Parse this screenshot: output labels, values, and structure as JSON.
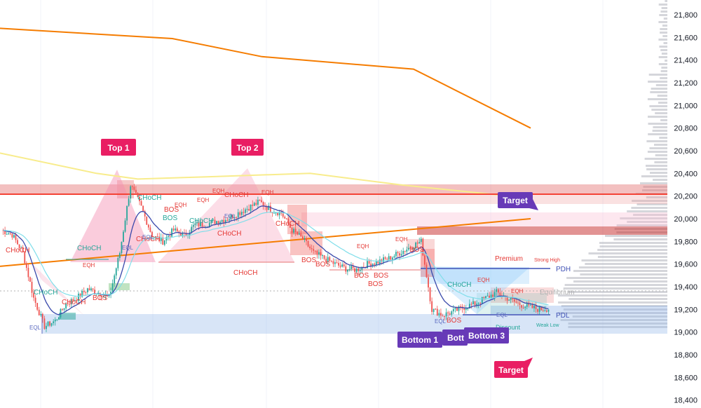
{
  "chart_data": {
    "type": "candlestick",
    "price_axis": {
      "ticks": [
        "21,800",
        "21,600",
        "21,400",
        "21,200",
        "21,000",
        "20,800",
        "20,600",
        "20,400",
        "20,200",
        "20,000",
        "19,800",
        "19,600",
        "19,400",
        "19,200",
        "19,000",
        "18,800",
        "18,600",
        "18,400"
      ],
      "tick_values": [
        21800,
        21600,
        21400,
        21200,
        21000,
        20800,
        20600,
        20400,
        20200,
        20000,
        19800,
        19600,
        19400,
        19200,
        19000,
        18800,
        18600,
        18400
      ],
      "range": [
        18330,
        21930
      ]
    },
    "series": [
      {
        "kind": "candles",
        "approx_closes": [
          19900,
          19860,
          19700,
          19300,
          19050,
          19100,
          19250,
          19300,
          19380,
          19350,
          19300,
          19700,
          20300,
          20100,
          19850,
          19800,
          19900,
          19850,
          19950,
          19950,
          19980,
          20000,
          20050,
          20100,
          20150,
          20080,
          20050,
          19900,
          19820,
          19700,
          19650,
          19600,
          19560,
          19550,
          19600,
          19620,
          19650,
          19700,
          19750,
          19800,
          19200,
          19150,
          19180,
          19220,
          19250,
          19300,
          19350,
          19300,
          19250,
          19220,
          19200,
          19210
        ]
      },
      {
        "kind": "moving-average",
        "color": "#f57c00",
        "points": [
          [
            0,
            21680
          ],
          [
            25,
            21590
          ],
          [
            38,
            21430
          ],
          [
            60,
            21320
          ],
          [
            77,
            20800
          ]
        ]
      },
      {
        "kind": "moving-average",
        "color": "#f8ec8c",
        "points": [
          [
            0,
            20580
          ],
          [
            14,
            20400
          ],
          [
            20,
            20350
          ],
          [
            30,
            20370
          ],
          [
            45,
            20400
          ],
          [
            58,
            20300
          ],
          [
            77,
            20180
          ]
        ]
      },
      {
        "kind": "trendline",
        "color": "#f57c00",
        "points": [
          [
            0,
            19580
          ],
          [
            77,
            20000
          ]
        ]
      },
      {
        "kind": "horizontal",
        "color": "#f44336",
        "value": 20160
      }
    ],
    "zones": [
      {
        "kind": "supply",
        "color": "#e57373",
        "from": 20080,
        "to": 20240
      },
      {
        "kind": "supply",
        "color": "#e57373",
        "from": 19800,
        "to": 19860
      },
      {
        "kind": "demand",
        "color": "#90b4e8",
        "from": 18910,
        "to": 19080
      }
    ],
    "levels": [
      {
        "label": "PDH",
        "value": 19490
      },
      {
        "label": "PDL",
        "value": 19080
      },
      {
        "label": "Equilibrium",
        "value": 19280
      },
      {
        "label": "Strong High",
        "value": 19560
      },
      {
        "label": "Weak Low",
        "value": 18990
      },
      {
        "label": "Premium",
        "value": 19580
      },
      {
        "label": "Discount",
        "value": 18980
      }
    ],
    "structure_labels": [
      "CHoCH",
      "CHoCH",
      "CHoCH",
      "CHoCH",
      "CHoCH",
      "CHoCH",
      "CHoCH",
      "CHoCH",
      "CHoCH",
      "CHoCH",
      "CHoCH",
      "CHoCH",
      "BOS",
      "BOS",
      "BOS",
      "BOS",
      "BOS",
      "BOS",
      "BOS",
      "BOS",
      "BOS",
      "BOS",
      "EQH",
      "EQH",
      "EQH",
      "EQH",
      "EQH",
      "EQH",
      "EQH",
      "EQH",
      "EQH",
      "EQL",
      "EQL",
      "EQL",
      "EQL",
      "EQL",
      "EQL"
    ],
    "callouts": [
      {
        "text": "Top 1",
        "color": "#e91e63"
      },
      {
        "text": "Top 2",
        "color": "#e91e63"
      },
      {
        "text": "Target",
        "color": "#673ab7"
      },
      {
        "text": "Bottom 1",
        "color": "#673ab7"
      },
      {
        "text": "Bott",
        "color": "#673ab7"
      },
      {
        "text": "Bottom 3",
        "color": "#673ab7"
      },
      {
        "text": "Target",
        "color": "#e91e63"
      }
    ]
  }
}
